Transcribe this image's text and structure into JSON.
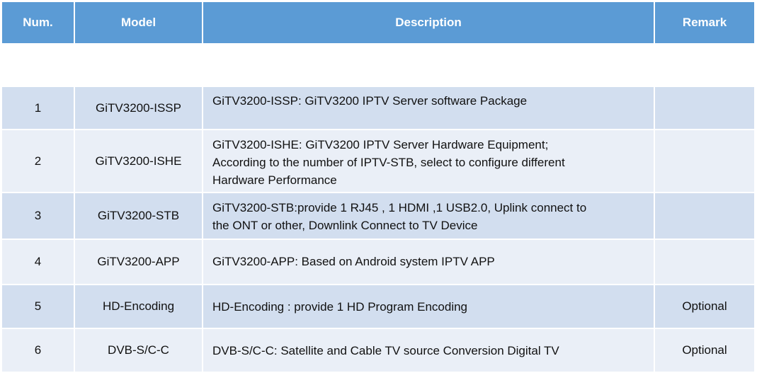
{
  "header": {
    "num": "Num.",
    "model": "Model",
    "description": "Description",
    "remark": "Remark"
  },
  "colors": {
    "header": "#5b9bd5",
    "row_odd": "#d2deef",
    "row_even": "#eaeff7"
  },
  "rows": [
    {
      "num": "1",
      "model": "GiTV3200-ISSP",
      "description": "GiTV3200-ISSP: GiTV3200 IPTV Server software Package",
      "remark": ""
    },
    {
      "num": "2",
      "model": "GiTV3200-ISHE",
      "description": "GiTV3200-ISHE: GiTV3200 IPTV Server Hardware Equipment;\nAccording to the number of IPTV-STB, select to configure different\nHardware Performance",
      "remark": ""
    },
    {
      "num": "3",
      "model": "GiTV3200-STB",
      "description": "GiTV3200-STB:provide 1 RJ45  , 1 HDMI ,1 USB2.0, Uplink connect to\nthe ONT  or other, Downlink Connect to TV Device",
      "remark": ""
    },
    {
      "num": "4",
      "model": "GiTV3200-APP",
      "description": "GiTV3200-APP: Based on Android system IPTV APP",
      "remark": ""
    },
    {
      "num": "5",
      "model": "HD-Encoding",
      "description": "HD-Encoding : provide 1 HD Program Encoding",
      "remark": "Optional"
    },
    {
      "num": "6",
      "model": "DVB-S/C-C",
      "description": "DVB-S/C-C: Satellite and Cable TV source Conversion Digital TV",
      "remark": "Optional"
    }
  ]
}
